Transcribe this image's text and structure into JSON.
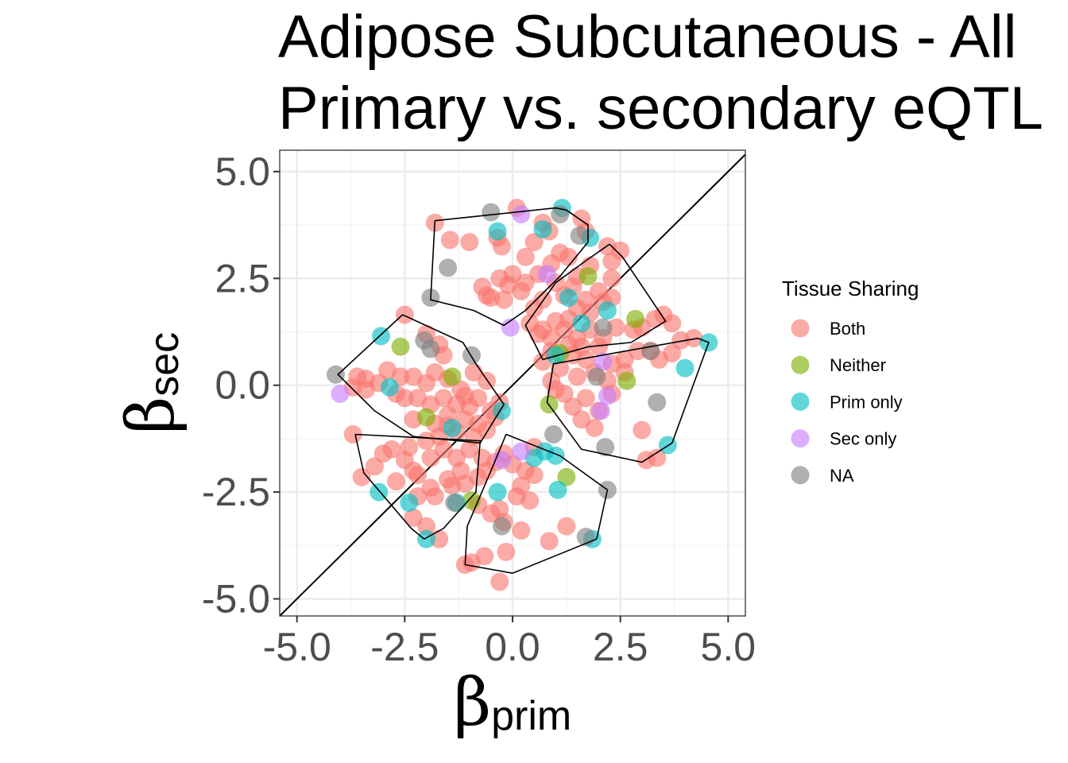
{
  "chart_data": {
    "type": "scatter",
    "title_line1": "Adipose Subcutaneous - All",
    "title_line2": "Primary vs. secondary eQTL",
    "xlabel": {
      "symbol": "β",
      "subscript": "prim"
    },
    "ylabel": {
      "symbol": "β",
      "subscript": "sec"
    },
    "xlim": [
      -5.4,
      5.4
    ],
    "ylim": [
      -5.4,
      5.5
    ],
    "x_ticks": [
      -5.0,
      -2.5,
      0.0,
      2.5,
      5.0
    ],
    "x_tick_labels": [
      "-5.0",
      "-2.5",
      "0.0",
      "2.5",
      "5.0"
    ],
    "y_ticks": [
      -5.0,
      -2.5,
      0.0,
      2.5,
      5.0
    ],
    "y_tick_labels": [
      "-5.0",
      "-2.5",
      "0.0",
      "2.5",
      "5.0"
    ],
    "grid": true,
    "reference_line": "y = x",
    "legend": {
      "title": "Tissue Sharing",
      "position": "right",
      "entries": [
        {
          "name": "Both",
          "color": "#F8766D"
        },
        {
          "name": "Neither",
          "color": "#7CAE00"
        },
        {
          "name": "Prim only",
          "color": "#00BFC4"
        },
        {
          "name": "Sec only",
          "color": "#C77CFF"
        },
        {
          "name": "NA",
          "color": "#7F7F7F"
        }
      ]
    },
    "series": [
      {
        "name": "Both",
        "color": "#F8766D",
        "points": [
          [
            0.1,
            4.15
          ],
          [
            -1.8,
            3.8
          ],
          [
            -1.45,
            3.4
          ],
          [
            -1.0,
            3.35
          ],
          [
            -0.35,
            3.45
          ],
          [
            -0.25,
            3.25
          ],
          [
            0.3,
            3.0
          ],
          [
            0.5,
            3.35
          ],
          [
            0.7,
            3.8
          ],
          [
            0.85,
            3.6
          ],
          [
            1.3,
            3.0
          ],
          [
            1.6,
            3.9
          ],
          [
            1.7,
            3.6
          ],
          [
            2.2,
            3.25
          ],
          [
            2.5,
            3.15
          ],
          [
            2.3,
            2.9
          ],
          [
            1.8,
            2.8
          ],
          [
            1.5,
            2.55
          ],
          [
            1.1,
            3.1
          ],
          [
            0.9,
            2.85
          ],
          [
            0.6,
            2.6
          ],
          [
            0.3,
            2.4
          ],
          [
            0.0,
            2.6
          ],
          [
            -0.3,
            2.5
          ],
          [
            -0.7,
            2.3
          ],
          [
            -0.6,
            2.1
          ],
          [
            -0.2,
            2.0
          ],
          [
            -0.5,
            2.05
          ],
          [
            0.2,
            2.2
          ],
          [
            -0.1,
            2.35
          ],
          [
            0.5,
            1.8
          ],
          [
            0.7,
            2.0
          ],
          [
            1.0,
            2.4
          ],
          [
            1.2,
            2.1
          ],
          [
            1.4,
            2.3
          ],
          [
            1.7,
            2.0
          ],
          [
            2.0,
            2.2
          ],
          [
            2.3,
            2.5
          ],
          [
            2.3,
            2.05
          ],
          [
            2.1,
            1.95
          ],
          [
            1.8,
            1.7
          ],
          [
            1.5,
            1.8
          ],
          [
            1.3,
            1.55
          ],
          [
            1.0,
            1.5
          ],
          [
            0.7,
            1.3
          ],
          [
            0.4,
            1.45
          ],
          [
            0.6,
            1.2
          ],
          [
            0.9,
            1.1
          ],
          [
            1.2,
            1.3
          ],
          [
            1.5,
            1.1
          ],
          [
            1.8,
            1.3
          ],
          [
            2.1,
            1.1
          ],
          [
            2.4,
            1.35
          ],
          [
            2.8,
            1.3
          ],
          [
            3.0,
            1.35
          ],
          [
            3.3,
            1.55
          ],
          [
            3.5,
            1.65
          ],
          [
            3.7,
            1.45
          ],
          [
            3.9,
            1.05
          ],
          [
            4.2,
            1.1
          ],
          [
            3.7,
            0.75
          ],
          [
            3.4,
            0.6
          ],
          [
            3.2,
            0.8
          ],
          [
            2.9,
            0.8
          ],
          [
            2.6,
            0.6
          ],
          [
            2.3,
            0.5
          ],
          [
            2.0,
            0.9
          ],
          [
            1.7,
            0.6
          ],
          [
            1.4,
            0.7
          ],
          [
            1.1,
            0.4
          ],
          [
            0.9,
            0.8
          ],
          [
            0.7,
            0.55
          ],
          [
            1.3,
            0.95
          ],
          [
            1.6,
            0.9
          ],
          [
            1.9,
            0.3
          ],
          [
            2.2,
            0.1
          ],
          [
            1.5,
            0.2
          ],
          [
            1.2,
            -0.2
          ],
          [
            1.4,
            -0.5
          ],
          [
            1.7,
            -0.3
          ],
          [
            2.0,
            -0.6
          ],
          [
            1.9,
            -1.0
          ],
          [
            2.3,
            -0.2
          ],
          [
            2.6,
            0.3
          ],
          [
            0.9,
            0.1
          ],
          [
            1.0,
            -0.1
          ],
          [
            1.6,
            -0.8
          ],
          [
            3.0,
            -1.05
          ],
          [
            3.1,
            -1.75
          ],
          [
            3.35,
            -1.7
          ],
          [
            -2.5,
            1.65
          ],
          [
            -2.0,
            1.2
          ],
          [
            -1.7,
            0.95
          ],
          [
            -1.6,
            0.7
          ],
          [
            -2.9,
            0.35
          ],
          [
            -2.6,
            0.2
          ],
          [
            -3.4,
            0.15
          ],
          [
            -3.6,
            0.2
          ],
          [
            -3.7,
            -0.05
          ],
          [
            -3.4,
            -0.1
          ],
          [
            -3.1,
            0.05
          ],
          [
            -2.7,
            -0.2
          ],
          [
            -2.3,
            0.2
          ],
          [
            -2.0,
            0.05
          ],
          [
            -1.8,
            0.3
          ],
          [
            -1.5,
            0.15
          ],
          [
            -1.2,
            -0.1
          ],
          [
            -0.9,
            0.3
          ],
          [
            -0.6,
            0.1
          ],
          [
            -0.8,
            -0.3
          ],
          [
            -1.0,
            -0.5
          ],
          [
            -1.3,
            -0.45
          ],
          [
            -1.6,
            -0.3
          ],
          [
            -1.9,
            -0.45
          ],
          [
            -2.2,
            -0.3
          ],
          [
            -2.5,
            -0.3
          ],
          [
            -2.3,
            -0.8
          ],
          [
            -1.8,
            -0.9
          ],
          [
            -1.5,
            -0.7
          ],
          [
            -1.1,
            -0.8
          ],
          [
            -0.8,
            -0.9
          ],
          [
            -0.5,
            -0.6
          ],
          [
            -0.3,
            -0.4
          ],
          [
            -0.6,
            -1.05
          ],
          [
            -0.9,
            -1.2
          ],
          [
            -1.3,
            -1.1
          ],
          [
            -1.7,
            -1.2
          ],
          [
            -2.0,
            -1.3
          ],
          [
            -2.4,
            -1.45
          ],
          [
            -2.8,
            -1.5
          ],
          [
            -3.0,
            -1.6
          ],
          [
            -3.7,
            -1.15
          ],
          [
            -3.2,
            -1.9
          ],
          [
            -3.5,
            -2.15
          ],
          [
            -2.7,
            -2.25
          ],
          [
            -2.3,
            -2.0
          ],
          [
            -1.9,
            -1.7
          ],
          [
            -1.6,
            -1.5
          ],
          [
            -1.3,
            -1.7
          ],
          [
            -1.0,
            -1.5
          ],
          [
            -0.7,
            -1.7
          ],
          [
            -1.2,
            -2.0
          ],
          [
            -1.5,
            -2.2
          ],
          [
            -1.9,
            -2.4
          ],
          [
            -2.2,
            -2.1
          ],
          [
            -2.5,
            -1.75
          ],
          [
            -2.2,
            -2.6
          ],
          [
            -1.8,
            -2.6
          ],
          [
            -1.4,
            -2.35
          ],
          [
            -1.1,
            -2.3
          ],
          [
            -0.8,
            -2.15
          ],
          [
            -0.6,
            -2.0
          ],
          [
            -0.4,
            -1.8
          ],
          [
            -0.2,
            -1.6
          ],
          [
            0.0,
            -1.85
          ],
          [
            0.3,
            -2.0
          ],
          [
            0.5,
            -2.1
          ],
          [
            0.2,
            -2.35
          ],
          [
            0.1,
            -2.6
          ],
          [
            0.4,
            -2.7
          ],
          [
            -0.3,
            -2.9
          ],
          [
            -0.5,
            -3.0
          ],
          [
            -0.8,
            -2.8
          ],
          [
            -0.2,
            -3.2
          ],
          [
            0.2,
            -3.4
          ],
          [
            -2.3,
            -3.1
          ],
          [
            -2.0,
            -3.3
          ],
          [
            -1.7,
            -3.6
          ],
          [
            -1.1,
            -4.2
          ],
          [
            -0.95,
            -4.15
          ],
          [
            -0.65,
            -4.0
          ],
          [
            -0.15,
            -3.9
          ],
          [
            -0.3,
            -4.6
          ],
          [
            0.85,
            -3.65
          ],
          [
            1.25,
            -3.3
          ],
          [
            0.5,
            -1.45
          ],
          [
            -1.5,
            -0.95
          ],
          [
            -1.1,
            -0.25
          ],
          [
            -0.4,
            -0.75
          ]
        ]
      },
      {
        "name": "Neither",
        "color": "#7CAE00",
        "points": [
          [
            1.75,
            2.55
          ],
          [
            2.85,
            1.55
          ],
          [
            1.1,
            0.75
          ],
          [
            2.65,
            0.1
          ],
          [
            0.85,
            -0.45
          ],
          [
            1.25,
            -2.15
          ],
          [
            -2.6,
            0.9
          ],
          [
            -1.4,
            0.2
          ],
          [
            -2.0,
            -0.75
          ],
          [
            -0.95,
            -2.7
          ]
        ]
      },
      {
        "name": "Prim only",
        "color": "#00BFC4",
        "points": [
          [
            1.15,
            4.15
          ],
          [
            -0.35,
            3.6
          ],
          [
            0.7,
            3.65
          ],
          [
            1.8,
            3.45
          ],
          [
            1.3,
            2.05
          ],
          [
            2.2,
            1.75
          ],
          [
            1.6,
            1.45
          ],
          [
            4.55,
            1.0
          ],
          [
            4.0,
            0.4
          ],
          [
            1.0,
            0.7
          ],
          [
            -3.05,
            1.15
          ],
          [
            -2.85,
            -0.05
          ],
          [
            3.6,
            -1.4
          ],
          [
            0.5,
            -1.7
          ],
          [
            0.75,
            -1.55
          ],
          [
            1.0,
            -1.65
          ],
          [
            1.05,
            -2.45
          ],
          [
            1.85,
            -3.6
          ],
          [
            -3.1,
            -2.5
          ],
          [
            -2.4,
            -2.75
          ],
          [
            -2.0,
            -3.6
          ],
          [
            -1.3,
            -2.75
          ],
          [
            -0.35,
            -2.5
          ],
          [
            -1.4,
            -1.0
          ],
          [
            -0.25,
            -0.6
          ]
        ]
      },
      {
        "name": "Sec only",
        "color": "#C77CFF",
        "points": [
          [
            0.2,
            4.0
          ],
          [
            0.8,
            2.6
          ],
          [
            -0.05,
            1.35
          ],
          [
            2.1,
            0.55
          ],
          [
            2.2,
            -0.25
          ],
          [
            2.05,
            -0.6
          ],
          [
            -4.0,
            -0.2
          ],
          [
            0.2,
            -1.55
          ],
          [
            -0.25,
            -1.75
          ]
        ]
      },
      {
        "name": "NA",
        "color": "#7F7F7F",
        "points": [
          [
            -0.5,
            4.05
          ],
          [
            1.1,
            4.0
          ],
          [
            1.55,
            3.5
          ],
          [
            -1.5,
            2.75
          ],
          [
            -1.9,
            2.05
          ],
          [
            2.1,
            1.35
          ],
          [
            3.2,
            0.8
          ],
          [
            -2.05,
            1.05
          ],
          [
            -1.9,
            0.85
          ],
          [
            -0.95,
            0.7
          ],
          [
            -4.1,
            0.25
          ],
          [
            1.95,
            0.2
          ],
          [
            3.35,
            -0.4
          ],
          [
            0.95,
            -1.15
          ],
          [
            2.15,
            -1.45
          ],
          [
            2.2,
            -2.45
          ],
          [
            1.7,
            -3.55
          ],
          [
            -0.25,
            -3.3
          ],
          [
            -1.35,
            -2.75
          ]
        ]
      }
    ],
    "hulls": [
      [
        [
          -1.8,
          3.85
        ],
        [
          1.0,
          4.15
        ],
        [
          1.25,
          4.1
        ],
        [
          1.75,
          3.75
        ],
        [
          1.75,
          3.35
        ],
        [
          1.1,
          2.55
        ],
        [
          0.3,
          1.75
        ],
        [
          -0.2,
          1.4
        ],
        [
          -0.9,
          1.75
        ],
        [
          -1.9,
          2.0
        ],
        [
          -1.8,
          3.85
        ]
      ],
      [
        [
          2.25,
          3.3
        ],
        [
          2.55,
          3.0
        ],
        [
          3.55,
          1.5
        ],
        [
          2.75,
          1.0
        ],
        [
          1.75,
          0.9
        ],
        [
          0.7,
          0.6
        ],
        [
          0.3,
          1.4
        ],
        [
          1.0,
          2.4
        ],
        [
          1.75,
          2.95
        ],
        [
          2.25,
          3.3
        ]
      ],
      [
        [
          4.3,
          1.1
        ],
        [
          4.55,
          1.0
        ],
        [
          3.7,
          -1.35
        ],
        [
          3.0,
          -1.8
        ],
        [
          1.6,
          -1.5
        ],
        [
          0.8,
          -0.4
        ],
        [
          0.95,
          0.5
        ],
        [
          4.3,
          1.1
        ]
      ],
      [
        [
          -2.55,
          1.65
        ],
        [
          -1.15,
          1.0
        ],
        [
          -0.85,
          0.5
        ],
        [
          -0.2,
          -0.45
        ],
        [
          -0.75,
          -1.35
        ],
        [
          -2.3,
          -1.2
        ],
        [
          -3.2,
          -0.6
        ],
        [
          -4.05,
          0.25
        ],
        [
          -2.55,
          1.65
        ]
      ],
      [
        [
          -3.65,
          -1.15
        ],
        [
          -0.75,
          -1.3
        ],
        [
          -0.85,
          -2.5
        ],
        [
          -1.6,
          -3.35
        ],
        [
          -2.05,
          -3.6
        ],
        [
          -2.35,
          -3.35
        ],
        [
          -3.45,
          -2.05
        ],
        [
          -3.65,
          -1.15
        ]
      ],
      [
        [
          -0.15,
          -1.15
        ],
        [
          1.1,
          -1.65
        ],
        [
          2.2,
          -2.45
        ],
        [
          1.95,
          -3.6
        ],
        [
          0.0,
          -4.4
        ],
        [
          -1.1,
          -4.2
        ],
        [
          -1.05,
          -3.3
        ],
        [
          -0.5,
          -2.0
        ],
        [
          -0.15,
          -1.15
        ]
      ]
    ]
  }
}
